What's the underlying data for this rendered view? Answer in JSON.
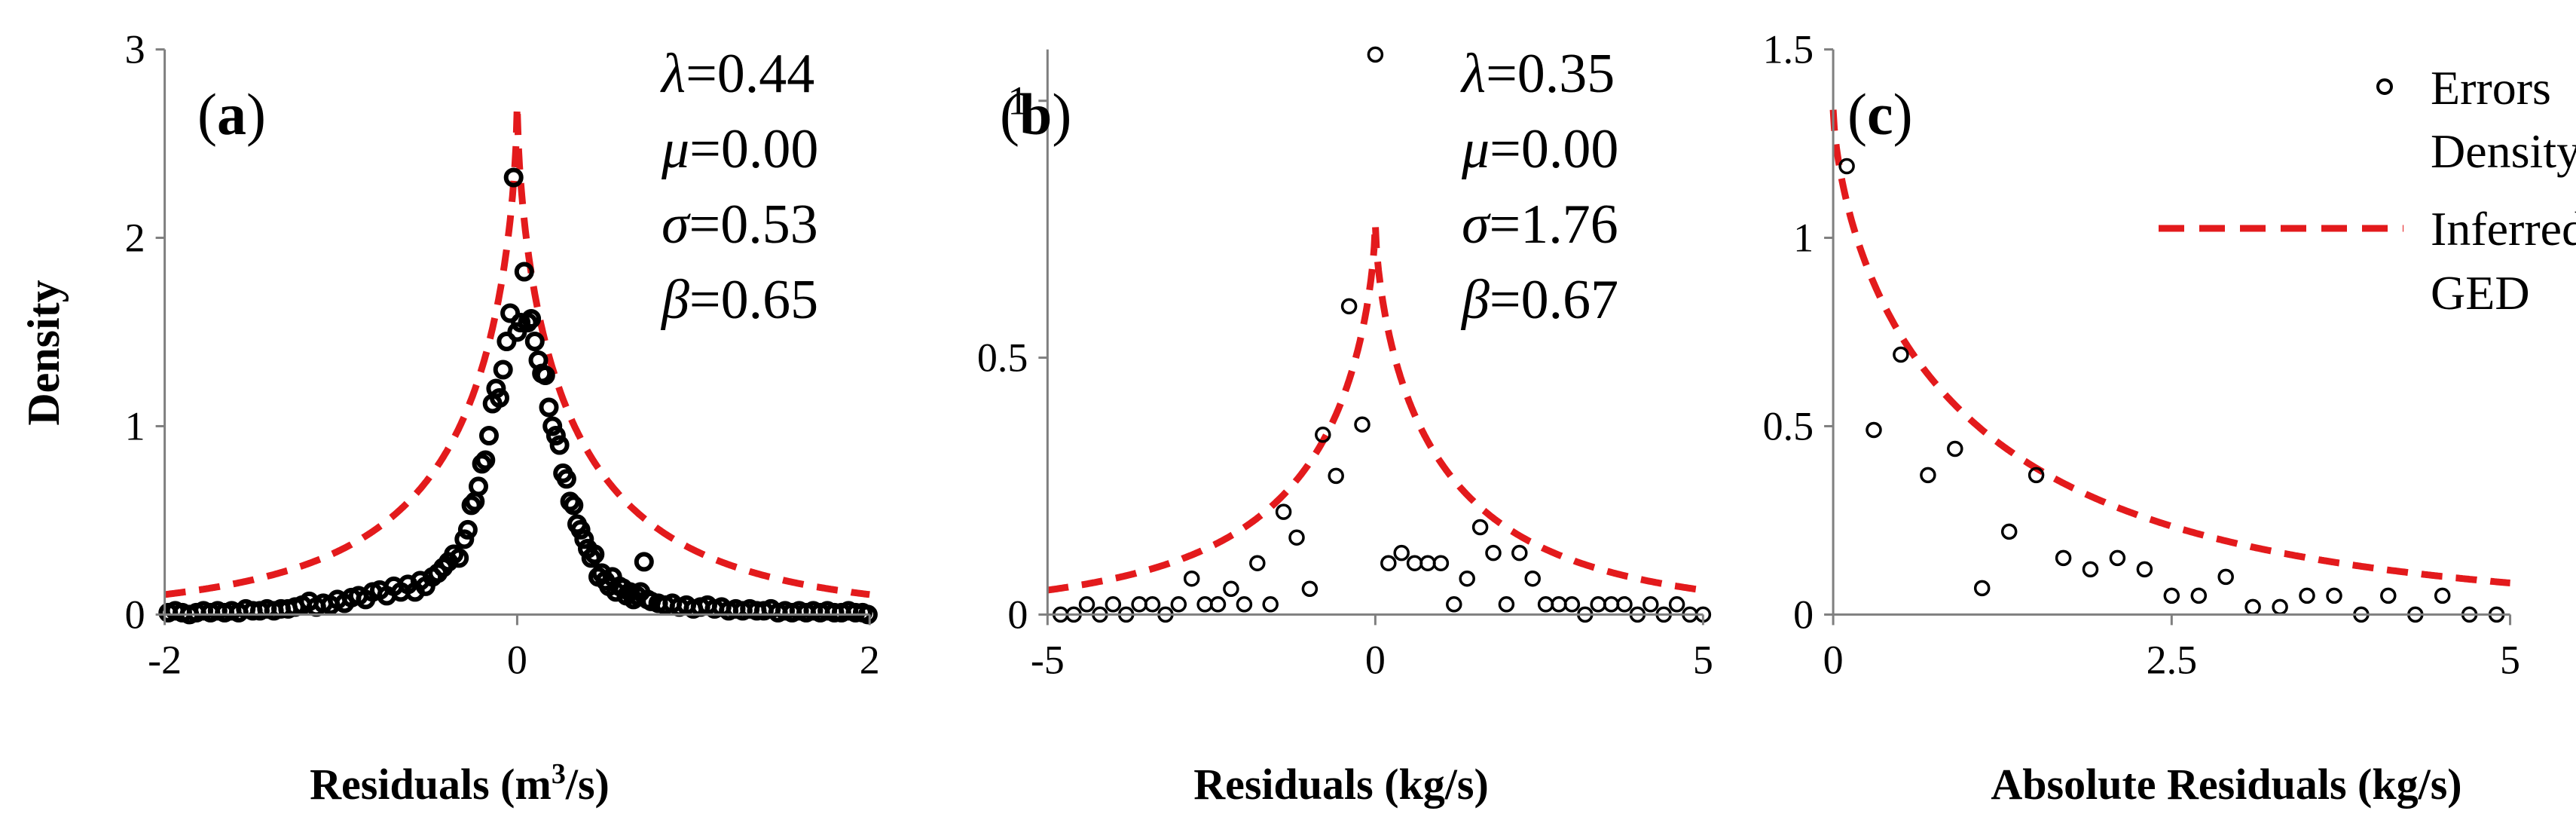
{
  "figure": {
    "legend": {
      "items": [
        {
          "lines": [
            "Errors",
            "Density"
          ],
          "symbol": "circle"
        },
        {
          "lines": [
            "Inferred",
            "GED"
          ],
          "symbol": "dashed-line"
        }
      ],
      "placement": "top-right of panel (c)"
    },
    "colors": {
      "points": "#000000",
      "curve": "#e31a1c",
      "axis": "#7f7f7f"
    }
  },
  "chart_data": [
    {
      "type": "scatter",
      "panel_label": "(a)",
      "label_open": "(",
      "label_letter": "a",
      "label_close": ")",
      "xlabel_main": "Residuals (m",
      "xlabel_sup": "3",
      "xlabel_tail": "/s)",
      "ylabel": "Density",
      "xlim": [
        -2,
        2
      ],
      "ylim": [
        0,
        3
      ],
      "xticks": [
        -2,
        0,
        2
      ],
      "yticks": [
        0,
        1,
        2,
        3
      ],
      "xtick_labels": [
        "-2",
        "0",
        "2"
      ],
      "ytick_labels": [
        "0",
        "1",
        "2",
        "3"
      ],
      "params": [
        {
          "symbol": "λ",
          "value": "=0.44"
        },
        {
          "symbol": "μ",
          "value": "=0.00"
        },
        {
          "symbol": "σ",
          "value": "=0.53"
        },
        {
          "symbol": "β",
          "value": "=0.65"
        }
      ],
      "fit": {
        "mu": 0.0,
        "sigma": 0.53,
        "beta": 0.65,
        "peak": 2.7
      },
      "points": [
        [
          -1.98,
          0.01
        ],
        [
          -1.94,
          0.02
        ],
        [
          -1.9,
          0.01
        ],
        [
          -1.86,
          0.0
        ],
        [
          -1.82,
          0.01
        ],
        [
          -1.78,
          0.02
        ],
        [
          -1.74,
          0.01
        ],
        [
          -1.7,
          0.02
        ],
        [
          -1.66,
          0.01
        ],
        [
          -1.62,
          0.02
        ],
        [
          -1.58,
          0.01
        ],
        [
          -1.54,
          0.03
        ],
        [
          -1.5,
          0.02
        ],
        [
          -1.46,
          0.02
        ],
        [
          -1.42,
          0.03
        ],
        [
          -1.38,
          0.02
        ],
        [
          -1.34,
          0.03
        ],
        [
          -1.3,
          0.03
        ],
        [
          -1.26,
          0.04
        ],
        [
          -1.22,
          0.05
        ],
        [
          -1.18,
          0.07
        ],
        [
          -1.14,
          0.04
        ],
        [
          -1.1,
          0.06
        ],
        [
          -1.06,
          0.05
        ],
        [
          -1.02,
          0.08
        ],
        [
          -0.98,
          0.06
        ],
        [
          -0.94,
          0.09
        ],
        [
          -0.9,
          0.1
        ],
        [
          -0.86,
          0.08
        ],
        [
          -0.82,
          0.12
        ],
        [
          -0.78,
          0.13
        ],
        [
          -0.74,
          0.1
        ],
        [
          -0.7,
          0.15
        ],
        [
          -0.66,
          0.12
        ],
        [
          -0.62,
          0.16
        ],
        [
          -0.58,
          0.12
        ],
        [
          -0.55,
          0.18
        ],
        [
          -0.52,
          0.15
        ],
        [
          -0.48,
          0.2
        ],
        [
          -0.45,
          0.22
        ],
        [
          -0.42,
          0.25
        ],
        [
          -0.39,
          0.28
        ],
        [
          -0.36,
          0.32
        ],
        [
          -0.33,
          0.3
        ],
        [
          -0.3,
          0.4
        ],
        [
          -0.28,
          0.45
        ],
        [
          -0.26,
          0.58
        ],
        [
          -0.24,
          0.6
        ],
        [
          -0.22,
          0.68
        ],
        [
          -0.2,
          0.8
        ],
        [
          -0.18,
          0.82
        ],
        [
          -0.16,
          0.95
        ],
        [
          -0.14,
          1.12
        ],
        [
          -0.12,
          1.2
        ],
        [
          -0.1,
          1.15
        ],
        [
          -0.08,
          1.3
        ],
        [
          -0.06,
          1.45
        ],
        [
          -0.04,
          1.6
        ],
        [
          -0.02,
          2.32
        ],
        [
          0.0,
          1.5
        ],
        [
          0.02,
          1.55
        ],
        [
          0.04,
          1.82
        ],
        [
          0.06,
          1.55
        ],
        [
          0.08,
          1.57
        ],
        [
          0.1,
          1.45
        ],
        [
          0.12,
          1.35
        ],
        [
          0.14,
          1.28
        ],
        [
          0.16,
          1.27
        ],
        [
          0.18,
          1.1
        ],
        [
          0.2,
          1.0
        ],
        [
          0.22,
          0.95
        ],
        [
          0.24,
          0.9
        ],
        [
          0.26,
          0.75
        ],
        [
          0.28,
          0.72
        ],
        [
          0.3,
          0.6
        ],
        [
          0.32,
          0.58
        ],
        [
          0.34,
          0.48
        ],
        [
          0.36,
          0.45
        ],
        [
          0.38,
          0.4
        ],
        [
          0.4,
          0.35
        ],
        [
          0.42,
          0.3
        ],
        [
          0.44,
          0.32
        ],
        [
          0.46,
          0.2
        ],
        [
          0.48,
          0.22
        ],
        [
          0.5,
          0.18
        ],
        [
          0.52,
          0.15
        ],
        [
          0.54,
          0.2
        ],
        [
          0.56,
          0.12
        ],
        [
          0.58,
          0.15
        ],
        [
          0.6,
          0.14
        ],
        [
          0.62,
          0.1
        ],
        [
          0.64,
          0.12
        ],
        [
          0.66,
          0.08
        ],
        [
          0.68,
          0.1
        ],
        [
          0.7,
          0.12
        ],
        [
          0.72,
          0.28
        ],
        [
          0.74,
          0.08
        ],
        [
          0.76,
          0.07
        ],
        [
          0.8,
          0.06
        ],
        [
          0.84,
          0.05
        ],
        [
          0.88,
          0.06
        ],
        [
          0.92,
          0.04
        ],
        [
          0.96,
          0.05
        ],
        [
          1.0,
          0.03
        ],
        [
          1.04,
          0.04
        ],
        [
          1.08,
          0.05
        ],
        [
          1.12,
          0.03
        ],
        [
          1.16,
          0.04
        ],
        [
          1.2,
          0.02
        ],
        [
          1.24,
          0.03
        ],
        [
          1.28,
          0.02
        ],
        [
          1.32,
          0.03
        ],
        [
          1.36,
          0.02
        ],
        [
          1.4,
          0.02
        ],
        [
          1.44,
          0.03
        ],
        [
          1.48,
          0.01
        ],
        [
          1.52,
          0.02
        ],
        [
          1.56,
          0.01
        ],
        [
          1.6,
          0.02
        ],
        [
          1.64,
          0.01
        ],
        [
          1.68,
          0.02
        ],
        [
          1.72,
          0.01
        ],
        [
          1.76,
          0.02
        ],
        [
          1.8,
          0.01
        ],
        [
          1.84,
          0.01
        ],
        [
          1.88,
          0.02
        ],
        [
          1.92,
          0.01
        ],
        [
          1.96,
          0.01
        ],
        [
          1.99,
          0.0
        ]
      ]
    },
    {
      "type": "scatter",
      "panel_label": "(b)",
      "label_open": "(",
      "label_letter": "b",
      "label_close": ")",
      "xlabel": "Residuals (kg/s)",
      "xlim": [
        -5,
        5
      ],
      "ylim": [
        0,
        1.1
      ],
      "xticks": [
        -5,
        0,
        5
      ],
      "yticks": [
        0,
        0.5,
        1
      ],
      "xtick_labels": [
        "-5",
        "0",
        "5"
      ],
      "ytick_labels": [
        "0",
        "0.5",
        "1"
      ],
      "params": [
        {
          "symbol": "λ",
          "value": "=0.35"
        },
        {
          "symbol": "μ",
          "value": "=0.00"
        },
        {
          "symbol": "σ",
          "value": "=1.76"
        },
        {
          "symbol": "β",
          "value": "=0.67"
        }
      ],
      "fit": {
        "mu": 0.0,
        "sigma": 1.76,
        "beta": 0.67,
        "peak": 0.76
      },
      "points": [
        [
          -4.8,
          0.0
        ],
        [
          -4.6,
          0.0
        ],
        [
          -4.4,
          0.02
        ],
        [
          -4.2,
          0.0
        ],
        [
          -4.0,
          0.02
        ],
        [
          -3.8,
          0.0
        ],
        [
          -3.6,
          0.02
        ],
        [
          -3.4,
          0.02
        ],
        [
          -3.2,
          0.0
        ],
        [
          -3.0,
          0.02
        ],
        [
          -2.8,
          0.07
        ],
        [
          -2.6,
          0.02
        ],
        [
          -2.4,
          0.02
        ],
        [
          -2.2,
          0.05
        ],
        [
          -2.0,
          0.02
        ],
        [
          -1.8,
          0.1
        ],
        [
          -1.6,
          0.02
        ],
        [
          -1.4,
          0.2
        ],
        [
          -1.2,
          0.15
        ],
        [
          -1.0,
          0.05
        ],
        [
          -0.8,
          0.35
        ],
        [
          -0.6,
          0.27
        ],
        [
          -0.4,
          0.6
        ],
        [
          -0.2,
          0.37
        ],
        [
          0.0,
          1.09
        ],
        [
          0.2,
          0.1
        ],
        [
          0.4,
          0.12
        ],
        [
          0.6,
          0.1
        ],
        [
          0.8,
          0.1
        ],
        [
          1.0,
          0.1
        ],
        [
          1.2,
          0.02
        ],
        [
          1.4,
          0.07
        ],
        [
          1.6,
          0.17
        ],
        [
          1.8,
          0.12
        ],
        [
          2.0,
          0.02
        ],
        [
          2.2,
          0.12
        ],
        [
          2.4,
          0.07
        ],
        [
          2.6,
          0.02
        ],
        [
          2.8,
          0.02
        ],
        [
          3.0,
          0.02
        ],
        [
          3.2,
          0.0
        ],
        [
          3.4,
          0.02
        ],
        [
          3.6,
          0.02
        ],
        [
          3.8,
          0.02
        ],
        [
          4.0,
          0.0
        ],
        [
          4.2,
          0.02
        ],
        [
          4.4,
          0.0
        ],
        [
          4.6,
          0.02
        ],
        [
          4.8,
          0.0
        ],
        [
          5.0,
          0.0
        ]
      ]
    },
    {
      "type": "scatter",
      "panel_label": "(c)",
      "label_open": "(",
      "label_letter": "c",
      "label_close": ")",
      "xlabel": "Absolute Residuals (kg/s)",
      "xlim": [
        0,
        5
      ],
      "ylim": [
        0,
        1.5
      ],
      "xticks": [
        0,
        2.5,
        5
      ],
      "yticks": [
        0,
        0.5,
        1,
        1.5
      ],
      "xtick_labels": [
        "0",
        "2.5",
        "5"
      ],
      "ytick_labels": [
        "0",
        "0.5",
        "1",
        "1.5"
      ],
      "fit": {
        "mu": 0.0,
        "sigma": 1.76,
        "beta": 0.67,
        "peak": 1.34
      },
      "points": [
        [
          0.1,
          1.19
        ],
        [
          0.3,
          0.49
        ],
        [
          0.5,
          0.69
        ],
        [
          0.7,
          0.37
        ],
        [
          0.9,
          0.44
        ],
        [
          1.1,
          0.07
        ],
        [
          1.3,
          0.22
        ],
        [
          1.5,
          0.37
        ],
        [
          1.7,
          0.15
        ],
        [
          1.9,
          0.12
        ],
        [
          2.1,
          0.15
        ],
        [
          2.3,
          0.12
        ],
        [
          2.5,
          0.05
        ],
        [
          2.7,
          0.05
        ],
        [
          2.9,
          0.1
        ],
        [
          3.1,
          0.02
        ],
        [
          3.3,
          0.02
        ],
        [
          3.5,
          0.05
        ],
        [
          3.7,
          0.05
        ],
        [
          3.9,
          0.0
        ],
        [
          4.1,
          0.05
        ],
        [
          4.3,
          0.0
        ],
        [
          4.5,
          0.05
        ],
        [
          4.7,
          0.0
        ],
        [
          4.9,
          0.0
        ]
      ]
    }
  ]
}
